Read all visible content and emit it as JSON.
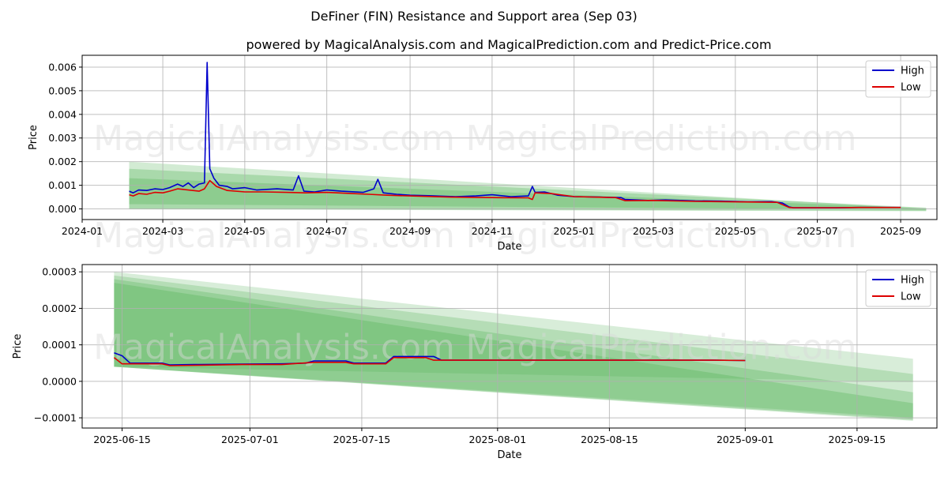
{
  "title": "DeFiner (FIN) Resistance and Support area (Sep 03)",
  "subtitle": "powered by MagicalAnalysis.com and MagicalPrediction.com and Predict-Price.com",
  "watermarks": [
    "MagicalAnalysis.com",
    "MagicalPrediction.com"
  ],
  "colors": {
    "high": "#0000cc",
    "low": "#dd0000",
    "band": "#4caf50"
  },
  "chart_data": [
    {
      "type": "line",
      "xlabel": "Date",
      "ylabel": "Price",
      "xlim": [
        "2024-01-01",
        "2025-09-28"
      ],
      "ylim": [
        -0.00045,
        0.0065
      ],
      "x_ticks": [
        "2024-01",
        "2024-03",
        "2024-05",
        "2024-07",
        "2024-09",
        "2024-11",
        "2025-01",
        "2025-03",
        "2025-05",
        "2025-07",
        "2025-09"
      ],
      "y_ticks": [
        "0.000",
        "0.001",
        "0.002",
        "0.003",
        "0.004",
        "0.005",
        "0.006"
      ],
      "grid": true,
      "legend": "top-right",
      "series": [
        {
          "name": "High",
          "x": [
            "2024-02-05",
            "2024-02-08",
            "2024-02-12",
            "2024-02-18",
            "2024-02-24",
            "2024-03-01",
            "2024-03-06",
            "2024-03-12",
            "2024-03-16",
            "2024-03-20",
            "2024-03-24",
            "2024-03-28",
            "2024-04-01",
            "2024-04-03",
            "2024-04-05",
            "2024-04-08",
            "2024-04-12",
            "2024-04-18",
            "2024-04-22",
            "2024-05-01",
            "2024-05-10",
            "2024-05-25",
            "2024-06-06",
            "2024-06-10",
            "2024-06-14",
            "2024-06-22",
            "2024-07-01",
            "2024-07-12",
            "2024-07-28",
            "2024-08-05",
            "2024-08-08",
            "2024-08-12",
            "2024-08-22",
            "2024-09-01",
            "2024-09-15",
            "2024-10-05",
            "2024-10-20",
            "2024-11-01",
            "2024-11-15",
            "2024-11-28",
            "2024-12-01",
            "2024-12-03",
            "2024-12-10",
            "2024-12-20",
            "2025-01-01",
            "2025-01-20",
            "2025-02-05",
            "2025-02-08",
            "2025-02-25",
            "2025-03-10",
            "2025-04-01",
            "2025-04-20",
            "2025-05-10",
            "2025-05-28",
            "2025-06-05",
            "2025-06-10",
            "2025-06-13",
            "2025-06-20",
            "2025-07-15",
            "2025-08-01",
            "2025-08-20",
            "2025-09-01"
          ],
          "values": [
            0.00075,
            0.00068,
            0.0008,
            0.00078,
            0.00085,
            0.00082,
            0.0009,
            0.00105,
            0.00095,
            0.0011,
            0.0009,
            0.00105,
            0.0011,
            0.0062,
            0.0017,
            0.0013,
            0.001,
            0.00095,
            0.00085,
            0.0009,
            0.0008,
            0.00085,
            0.0008,
            0.0014,
            0.00075,
            0.00072,
            0.0008,
            0.00075,
            0.0007,
            0.00085,
            0.00125,
            0.00068,
            0.00062,
            0.00058,
            0.00056,
            0.00052,
            0.00055,
            0.0006,
            0.00052,
            0.00055,
            0.00095,
            0.0007,
            0.00072,
            0.00058,
            0.00052,
            0.0005,
            0.00048,
            0.0004,
            0.00036,
            0.00038,
            0.00034,
            0.00033,
            0.0003,
            0.00031,
            0.00025,
            8e-05,
            5e-05,
            5e-05,
            5e-05,
            6e-05,
            6e-05,
            6e-05
          ]
        },
        {
          "name": "Low",
          "x": [
            "2024-02-05",
            "2024-02-08",
            "2024-02-12",
            "2024-02-18",
            "2024-02-24",
            "2024-03-01",
            "2024-03-06",
            "2024-03-12",
            "2024-03-20",
            "2024-03-28",
            "2024-04-01",
            "2024-04-05",
            "2024-04-10",
            "2024-04-18",
            "2024-05-01",
            "2024-05-15",
            "2024-06-01",
            "2024-06-15",
            "2024-07-01",
            "2024-07-20",
            "2024-08-01",
            "2024-08-15",
            "2024-09-01",
            "2024-10-01",
            "2024-11-01",
            "2024-11-28",
            "2024-12-01",
            "2024-12-03",
            "2024-12-15",
            "2025-01-01",
            "2025-02-01",
            "2025-02-08",
            "2025-03-01",
            "2025-04-01",
            "2025-05-01",
            "2025-06-01",
            "2025-06-10",
            "2025-06-13",
            "2025-07-15",
            "2025-08-01",
            "2025-09-01"
          ],
          "values": [
            0.0006,
            0.00055,
            0.00065,
            0.00062,
            0.0007,
            0.00068,
            0.00075,
            0.00085,
            0.0008,
            0.00075,
            0.00085,
            0.0012,
            0.00095,
            0.00078,
            0.00072,
            0.00072,
            0.0007,
            0.00068,
            0.0007,
            0.00065,
            0.00062,
            0.00058,
            0.00055,
            0.0005,
            0.00048,
            0.00047,
            0.0004,
            0.00068,
            0.00065,
            0.00052,
            0.00048,
            0.00035,
            0.00036,
            0.00032,
            0.0003,
            0.00028,
            6e-05,
            5e-05,
            5e-05,
            6e-05,
            6e-05
          ]
        }
      ]
    },
    {
      "type": "line",
      "xlabel": "Date",
      "ylabel": "Price",
      "xlim": [
        "2025-06-10",
        "2025-09-25"
      ],
      "ylim": [
        -0.000128,
        0.00032
      ],
      "x_ticks": [
        "2025-06-15",
        "2025-07-01",
        "2025-07-15",
        "2025-08-01",
        "2025-08-15",
        "2025-09-01",
        "2025-09-15"
      ],
      "y_ticks": [
        "−0.0001",
        "0.0000",
        "0.0001",
        "0.0002",
        "0.0003"
      ],
      "grid": true,
      "legend": "top-right",
      "series": [
        {
          "name": "High",
          "x": [
            "2025-06-14",
            "2025-06-15",
            "2025-06-16",
            "2025-06-20",
            "2025-06-21",
            "2025-06-24",
            "2025-06-30",
            "2025-07-05",
            "2025-07-08",
            "2025-07-09",
            "2025-07-13",
            "2025-07-14",
            "2025-07-18",
            "2025-07-19",
            "2025-07-24",
            "2025-07-25",
            "2025-08-10",
            "2025-08-28",
            "2025-09-01"
          ],
          "values": [
            7.8e-05,
            7e-05,
            5e-05,
            5e-05,
            4.5e-05,
            4.6e-05,
            4.7e-05,
            4.8e-05,
            5e-05,
            5.6e-05,
            5.6e-05,
            5e-05,
            5e-05,
            6.8e-05,
            6.8e-05,
            5.8e-05,
            5.8e-05,
            5.8e-05,
            5.7e-05
          ]
        },
        {
          "name": "Low",
          "x": [
            "2025-06-14",
            "2025-06-15",
            "2025-06-20",
            "2025-06-21",
            "2025-06-30",
            "2025-07-05",
            "2025-07-09",
            "2025-07-13",
            "2025-07-14",
            "2025-07-18",
            "2025-07-19",
            "2025-07-23",
            "2025-07-24",
            "2025-08-10",
            "2025-08-28",
            "2025-09-01"
          ],
          "values": [
            6.5e-05,
            4.8e-05,
            4.8e-05,
            4.3e-05,
            4.6e-05,
            4.6e-05,
            5.2e-05,
            5.2e-05,
            4.8e-05,
            4.8e-05,
            6.5e-05,
            6.5e-05,
            5.8e-05,
            5.8e-05,
            5.8e-05,
            5.7e-05
          ]
        }
      ]
    }
  ]
}
